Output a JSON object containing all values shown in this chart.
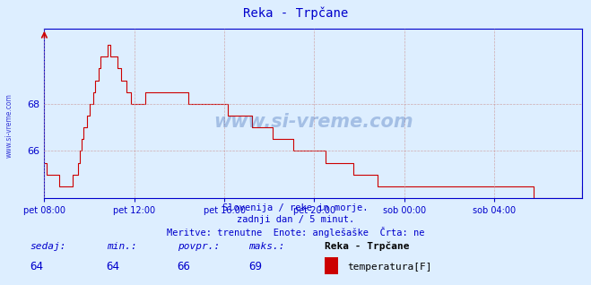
{
  "title": "Reka - Trpčane",
  "bg_color": "#ddeeff",
  "plot_bg_color": "#ddeeff",
  "line_color": "#cc0000",
  "axis_color": "#0000cc",
  "grid_color": "#cc9999",
  "yticks": [
    66,
    68
  ],
  "ylim": [
    64.0,
    71.2
  ],
  "xlim": [
    0,
    287
  ],
  "xtick_labels": [
    "pet 08:00",
    "pet 12:00",
    "pet 16:00",
    "pet 20:00",
    "sob 00:00",
    "sob 04:00"
  ],
  "xtick_positions": [
    0,
    48,
    96,
    144,
    192,
    240
  ],
  "watermark": "www.si-vreme.com",
  "subtitle1": "Slovenija / reke in morje.",
  "subtitle2": "zadnji dan / 5 minut.",
  "subtitle3": "Meritve: trenutne  Enote: anglešaške  Črta: ne",
  "label_sedaj": "sedaj:",
  "label_min": "min.:",
  "label_povpr": "povpr.:",
  "label_maks": "maks.:",
  "val_sedaj": "64",
  "val_min": "64",
  "val_povpr": "66",
  "val_maks": "69",
  "legend_title": "Reka - Trpčane",
  "legend_label": "temperatura[F]",
  "legend_color": "#cc0000",
  "left_label": "www.si-vreme.com"
}
